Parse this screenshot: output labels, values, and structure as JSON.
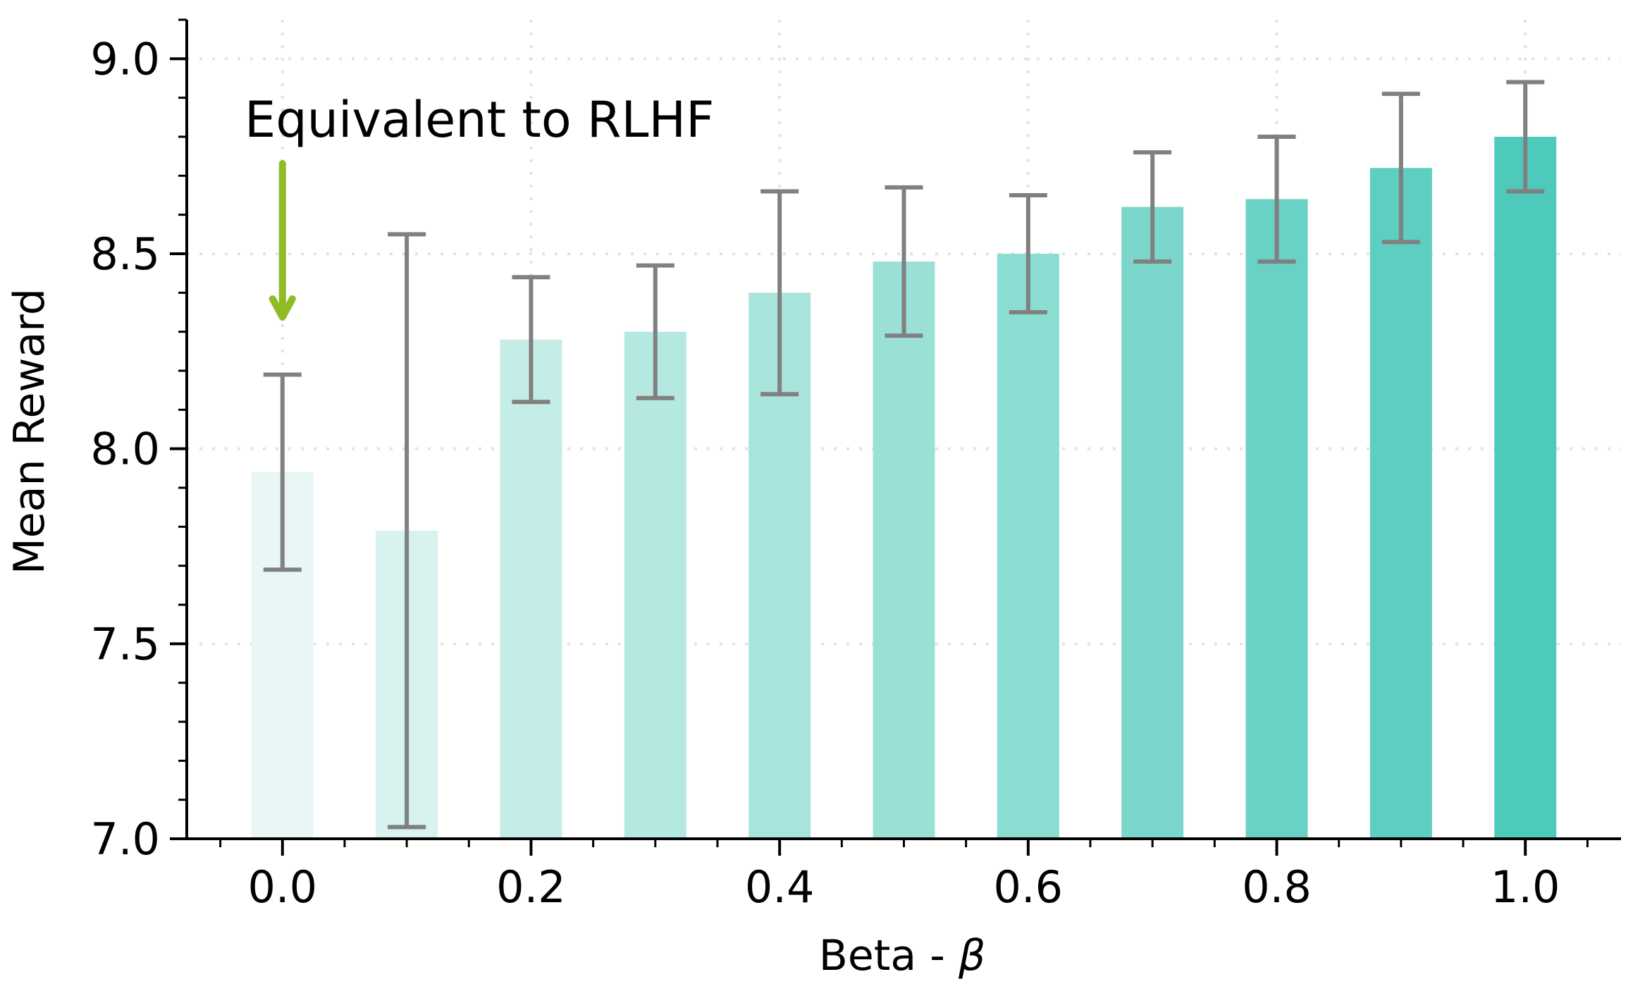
{
  "chart_data": {
    "type": "bar",
    "xlabel_prefix": "Beta - ",
    "xlabel_symbol": "β",
    "ylabel": "Mean Reward",
    "ylim": [
      7.0,
      9.1
    ],
    "xlim": [
      -0.077,
      1.077
    ],
    "grid": true,
    "x": [
      0.0,
      0.1,
      0.2,
      0.3,
      0.4,
      0.5,
      0.6,
      0.7,
      0.8,
      0.9,
      1.0
    ],
    "values": [
      7.94,
      7.79,
      8.28,
      8.3,
      8.4,
      8.48,
      8.5,
      8.62,
      8.64,
      8.72,
      8.8
    ],
    "error_low": [
      7.69,
      7.03,
      8.12,
      8.13,
      8.14,
      8.29,
      8.35,
      8.48,
      8.48,
      8.53,
      8.66
    ],
    "error_high": [
      8.19,
      8.55,
      8.44,
      8.47,
      8.66,
      8.67,
      8.65,
      8.76,
      8.8,
      8.91,
      8.94
    ],
    "bar_colors": [
      "#e8f7f5",
      "#d8f2ef",
      "#c5ede7",
      "#b5e8e1",
      "#a8e4dc",
      "#9be0d7",
      "#8bdcd1",
      "#7bd7cc",
      "#69d2c5",
      "#5dcebf",
      "#4ecabb"
    ],
    "error_color": "#808080",
    "xticks": [
      0.0,
      0.2,
      0.4,
      0.6,
      0.8,
      1.0
    ],
    "xtick_labels": [
      "0.0",
      "0.2",
      "0.4",
      "0.6",
      "0.8",
      "1.0"
    ],
    "yticks": [
      7.0,
      7.5,
      8.0,
      8.5,
      9.0
    ],
    "ytick_labels": [
      "7.0",
      "7.5",
      "8.0",
      "8.5",
      "9.0"
    ],
    "annotation": {
      "text": "Equivalent to RLHF",
      "color": "#8fbc24",
      "points_to_x": 0.0
    }
  }
}
